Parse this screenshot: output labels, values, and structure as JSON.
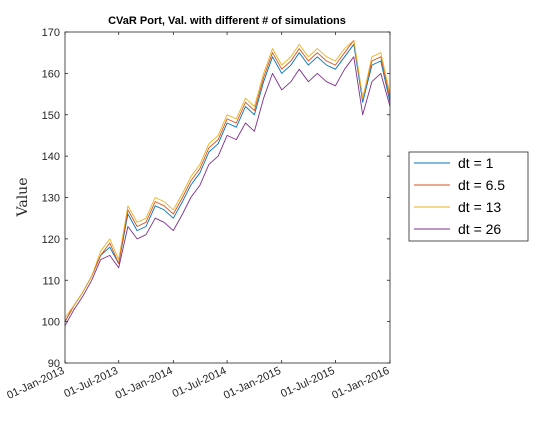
{
  "chart_data": {
    "type": "line",
    "title": "CVaR Port, Val. with different # of simulations",
    "xlabel": "",
    "ylabel": "Value",
    "ylim": [
      90,
      170
    ],
    "xlim": [
      "2013-01-01",
      "2016-01-01"
    ],
    "y_ticks": [
      90,
      100,
      110,
      120,
      130,
      140,
      150,
      160,
      170
    ],
    "x_ticks": [
      "2013-01-01",
      "2013-07-01",
      "2014-01-01",
      "2014-07-01",
      "2015-01-01",
      "2015-07-01",
      "2016-01-01"
    ],
    "x_tick_labels": [
      "01-Jan-2013",
      "01-Jul-2013",
      "01-Jan-2014",
      "01-Jul-2014",
      "01-Jan-2015",
      "01-Jul-2015",
      "01-Jan-2016"
    ],
    "grid": false,
    "legend_position": "outside-right",
    "x": [
      "2013-01-01",
      "2013-02-01",
      "2013-03-01",
      "2013-04-01",
      "2013-05-01",
      "2013-06-01",
      "2013-07-01",
      "2013-08-01",
      "2013-09-01",
      "2013-10-01",
      "2013-11-01",
      "2013-12-01",
      "2014-01-01",
      "2014-02-01",
      "2014-03-01",
      "2014-04-01",
      "2014-05-01",
      "2014-06-01",
      "2014-07-01",
      "2014-08-01",
      "2014-09-01",
      "2014-10-01",
      "2014-11-01",
      "2014-12-01",
      "2015-01-01",
      "2015-02-01",
      "2015-03-01",
      "2015-04-01",
      "2015-05-01",
      "2015-06-01",
      "2015-07-01",
      "2015-08-01",
      "2015-09-01",
      "2015-10-01",
      "2015-11-01",
      "2015-12-01",
      "2016-01-01"
    ],
    "series": [
      {
        "name": "dt = 1",
        "color": "#0072BD",
        "values": [
          100,
          104,
          107,
          111,
          116,
          118,
          114,
          126,
          122,
          123,
          128,
          127,
          125,
          129,
          133,
          136,
          141,
          143,
          148,
          147,
          152,
          150,
          158,
          164,
          160,
          162,
          165,
          162,
          164,
          162,
          161,
          164,
          167,
          153,
          162,
          163,
          153
        ]
      },
      {
        "name": "dt = 6.5",
        "color": "#D95319",
        "values": [
          100,
          104,
          107,
          111,
          116,
          119,
          114,
          127,
          123,
          124,
          129,
          128,
          126,
          130,
          134,
          137,
          142,
          144,
          149,
          148,
          153,
          151,
          159,
          165,
          161,
          163,
          166,
          163,
          165,
          163,
          162,
          165,
          168,
          154,
          163,
          164,
          154
        ]
      },
      {
        "name": "dt = 13",
        "color": "#EDB120",
        "values": [
          101,
          104,
          107,
          111,
          117,
          120,
          115,
          128,
          124,
          125,
          130,
          129,
          127,
          131,
          135,
          138,
          143,
          145,
          150,
          149,
          154,
          152,
          160,
          166,
          162,
          164,
          167,
          164,
          166,
          164,
          163,
          166,
          168,
          154,
          164,
          165,
          155
        ]
      },
      {
        "name": "dt = 26",
        "color": "#7E2F8E",
        "values": [
          99,
          103,
          106,
          110,
          115,
          116,
          113,
          123,
          120,
          121,
          125,
          124,
          122,
          126,
          130,
          133,
          138,
          140,
          145,
          144,
          148,
          146,
          154,
          160,
          156,
          158,
          161,
          158,
          160,
          158,
          157,
          161,
          164,
          150,
          158,
          160,
          152
        ]
      }
    ]
  }
}
